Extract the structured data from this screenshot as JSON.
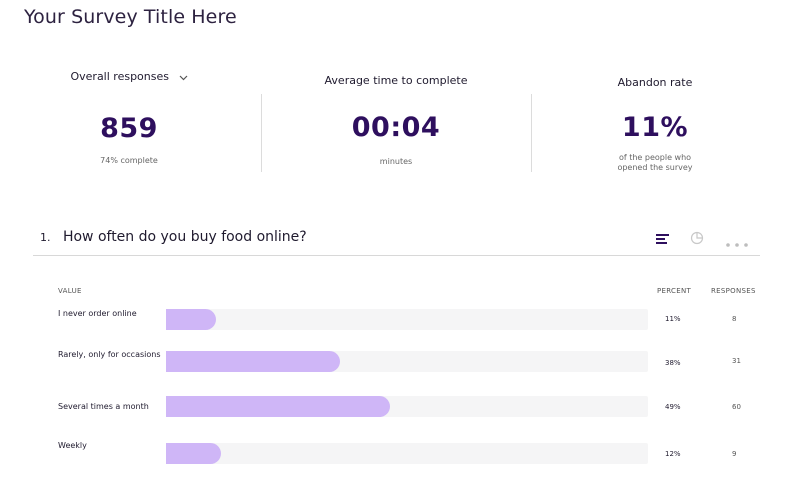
{
  "survey": {
    "title": "Your Survey Title Here"
  },
  "stats": {
    "responses": {
      "label": "Overall responses",
      "value": "859",
      "sub": "74% complete"
    },
    "time": {
      "label": "Average time to complete",
      "value": "00:04",
      "sub": "minutes"
    },
    "abandon": {
      "label": "Abandon rate",
      "value": "11%",
      "sub_line1": "of the people who",
      "sub_line2": "opened the survey"
    }
  },
  "question": {
    "number": "1.",
    "text": "How often do you buy food online?",
    "columns": {
      "value": "VALUE",
      "percent": "PERCENT",
      "responses": "RESPONSES"
    },
    "rows": [
      {
        "label": "I never order online",
        "percent_text": "11%",
        "percent": 11,
        "responses": "8"
      },
      {
        "label": "Rarely, only for occasions",
        "percent_text": "38%",
        "percent": 38,
        "responses": "31"
      },
      {
        "label": "Several times a month",
        "percent_text": "49%",
        "percent": 49,
        "responses": "60"
      },
      {
        "label": "Weekly",
        "percent_text": "12%",
        "percent": 12,
        "responses": "9"
      }
    ]
  },
  "colors": {
    "accent": "#2e0f5e",
    "bar": "#cfb6f7",
    "track": "#f5f5f6"
  },
  "icons": {
    "dropdown": "chevron-down-icon",
    "bar_view": "bar-chart-icon",
    "pie_view": "pie-chart-icon",
    "more": "more-dots-icon"
  }
}
